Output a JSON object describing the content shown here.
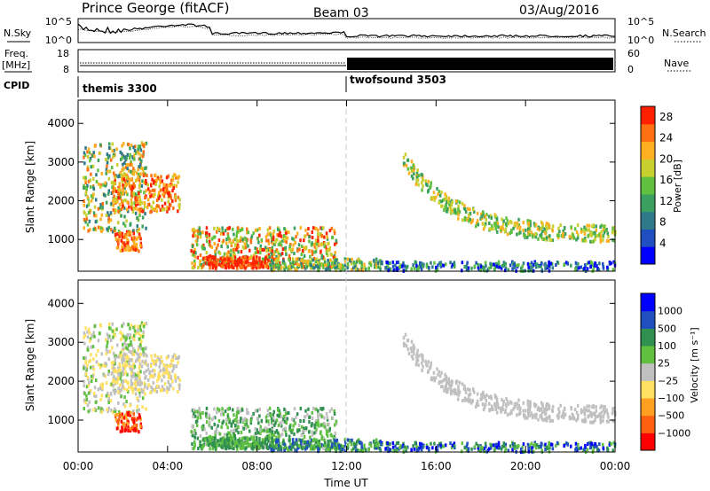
{
  "header": {
    "station": "Prince George (fitACF)",
    "beam": "Beam 03",
    "date": "03/Aug/2016"
  },
  "noise_panel": {
    "left_label": "N.Sky",
    "right_label": "N.Search",
    "left_ticks": [
      "10^5",
      "10^0"
    ],
    "right_ticks": [
      "10^5",
      "10^0"
    ]
  },
  "freq_panel": {
    "left_label_top": "Freq.",
    "left_label_bottom": "[MHz]",
    "right_label": "Nave",
    "left_ticks": [
      "18",
      "8"
    ],
    "right_ticks": [
      "60",
      "0"
    ]
  },
  "cpid": {
    "label": "CPID",
    "segments": [
      {
        "name": "themis 3300",
        "start_hour": 0
      },
      {
        "name": "twofsound 3503",
        "start_hour": 12
      }
    ]
  },
  "colors": {
    "power": [
      "#0000ff",
      "#1f4fc0",
      "#2f7a8a",
      "#3aa060",
      "#60c040",
      "#c8d030",
      "#ffb020",
      "#ff7010",
      "#ff2000"
    ],
    "velocity": [
      "#ff0000",
      "#ff6010",
      "#ffa020",
      "#ffe060",
      "#c0c0c0",
      "#60c040",
      "#309050",
      "#2050c0",
      "#0000ff"
    ]
  },
  "chart_data": [
    {
      "type": "heatmap",
      "name": "Power",
      "ylabel": "Slant Range [km]",
      "xlim": [
        0,
        24
      ],
      "ylim": [
        180,
        4600
      ],
      "yticks": [
        "1000",
        "2000",
        "3000",
        "4000"
      ],
      "colorbar_label": "Power [dB]",
      "colorbar_ticks": [
        "4",
        "8",
        "12",
        "16",
        "20",
        "24",
        "28"
      ],
      "colorbar_range": [
        0,
        30
      ]
    },
    {
      "type": "heatmap",
      "name": "Velocity",
      "ylabel": "Slant Range [km]",
      "xlim": [
        0,
        24
      ],
      "ylim": [
        180,
        4600
      ],
      "yticks": [
        "1000",
        "2000",
        "3000",
        "4000"
      ],
      "xticks": [
        "00:00",
        "04:00",
        "08:00",
        "12:00",
        "16:00",
        "20:00",
        "00:00"
      ],
      "xlabel": "Time UT",
      "colorbar_label": "Velocity [m s⁻¹]",
      "colorbar_ticks": [
        "1000",
        "500",
        "100",
        "25",
        "−25",
        "−100",
        "−500",
        "−1000"
      ]
    }
  ]
}
